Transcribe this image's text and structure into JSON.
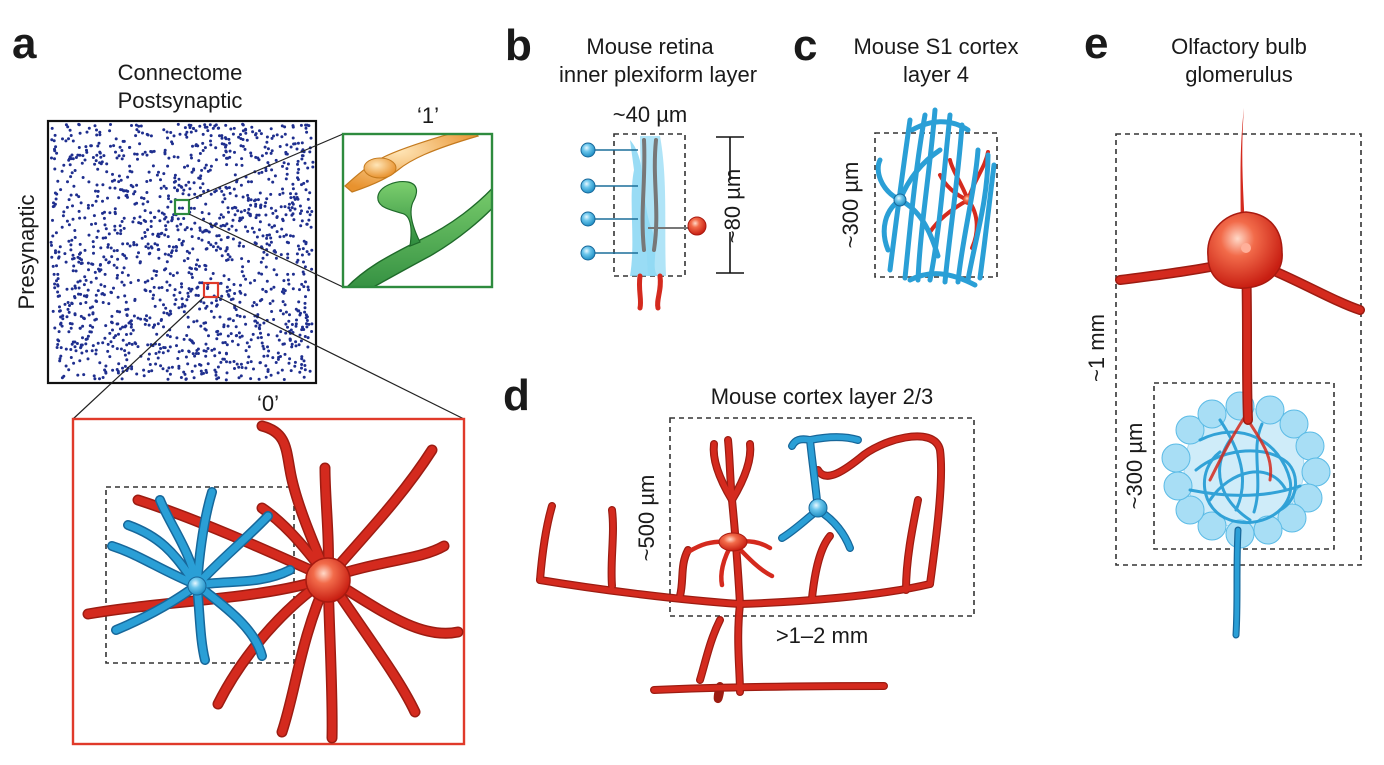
{
  "panels": {
    "a": {
      "letter": "a",
      "title_line1": "Connectome",
      "title_line2": "Postsynaptic",
      "y_label": "Presynaptic",
      "inset_green_label": "‘1’",
      "inset_red_label": "‘0’",
      "colors": {
        "matrix_dot": "#1f2f8f",
        "green_box": "#2e8b3e",
        "red_box": "#e03a2a"
      }
    },
    "b": {
      "letter": "b",
      "title_line1": "Mouse retina",
      "title_line2": "inner plexiform layer",
      "width_label": "~40 µm",
      "height_label": "~80 µm"
    },
    "c": {
      "letter": "c",
      "title_line1": "Mouse S1 cortex",
      "title_line2": "layer 4",
      "size_label": "~300 µm"
    },
    "d": {
      "letter": "d",
      "title": "Mouse cortex layer 2/3",
      "height_label": "~500 µm",
      "width_label": ">1–2 mm"
    },
    "e": {
      "letter": "e",
      "title_line1": "Olfactory bulb",
      "title_line2": "glomerulus",
      "outer_label": "~1 mm",
      "inner_label": "~300 µm"
    }
  },
  "colors": {
    "neuron_red": "#d42a1e",
    "neuron_blue": "#2a9fd6",
    "neuron_green": "#3a9a3a",
    "neuron_orange": "#f0a040"
  }
}
